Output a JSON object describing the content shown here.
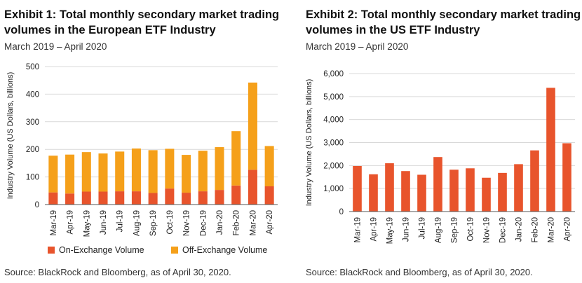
{
  "colors": {
    "on_exchange": "#E8542C",
    "off_exchange": "#F5A01A",
    "grid": "#d9d9d9",
    "axis": "#555555"
  },
  "chart_data": [
    {
      "type": "bar",
      "stacked": true,
      "title": "Exhibit 1: Total monthly secondary market trading volumes in the European ETF Industry",
      "subtitle": "March 2019 – April 2020",
      "ylabel": "Industry Volume (US Dollars, billions)",
      "xlabel": "",
      "ylim": [
        0,
        500
      ],
      "yticks": [
        "0",
        "100",
        "200",
        "300",
        "400",
        "500"
      ],
      "categories": [
        "Mar-19",
        "Apr-19",
        "May-19",
        "Jun-19",
        "Jul-19",
        "Aug-19",
        "Sep-19",
        "Oct-19",
        "Nov-19",
        "Dec-19",
        "Jan-20",
        "Feb-20",
        "Mar-20",
        "Apr-20"
      ],
      "series": [
        {
          "name": "On-Exchange Volume",
          "color": "#E8542C",
          "values": [
            44,
            40,
            47,
            47,
            48,
            48,
            42,
            58,
            43,
            48,
            53,
            69,
            126,
            66
          ]
        },
        {
          "name": "Off-Exchange Volume",
          "color": "#F5A01A",
          "values": [
            133,
            141,
            143,
            138,
            144,
            155,
            155,
            144,
            137,
            147,
            155,
            197,
            316,
            146
          ]
        }
      ],
      "grid": true,
      "legend": "bottom",
      "source": "Source: BlackRock and Bloomberg, as of April 30, 2020."
    },
    {
      "type": "bar",
      "title": "Exhibit 2: Total monthly secondary market trading volumes in the US ETF Industry",
      "subtitle": "March 2019 – April 2020",
      "ylabel": "Industry Volume (US Dollars, billions)",
      "xlabel": "",
      "ylim": [
        0,
        6000
      ],
      "yticks": [
        "0",
        "1,000",
        "2,000",
        "3,000",
        "4,000",
        "5,000",
        "6,000"
      ],
      "categories": [
        "Mar-19",
        "Apr-19",
        "May-19",
        "Jun-19",
        "Jul-19",
        "Aug-19",
        "Sep-19",
        "Oct-19",
        "Nov-19",
        "Dec-19",
        "Jan-20",
        "Feb-20",
        "Mar-20",
        "Apr-20"
      ],
      "values": [
        1980,
        1620,
        2100,
        1760,
        1600,
        2370,
        1820,
        1880,
        1470,
        1680,
        2060,
        2660,
        5380,
        2970
      ],
      "color": "#E8542C",
      "grid": true,
      "source": "Source: BlackRock and Bloomberg, as of April 30, 2020."
    }
  ]
}
